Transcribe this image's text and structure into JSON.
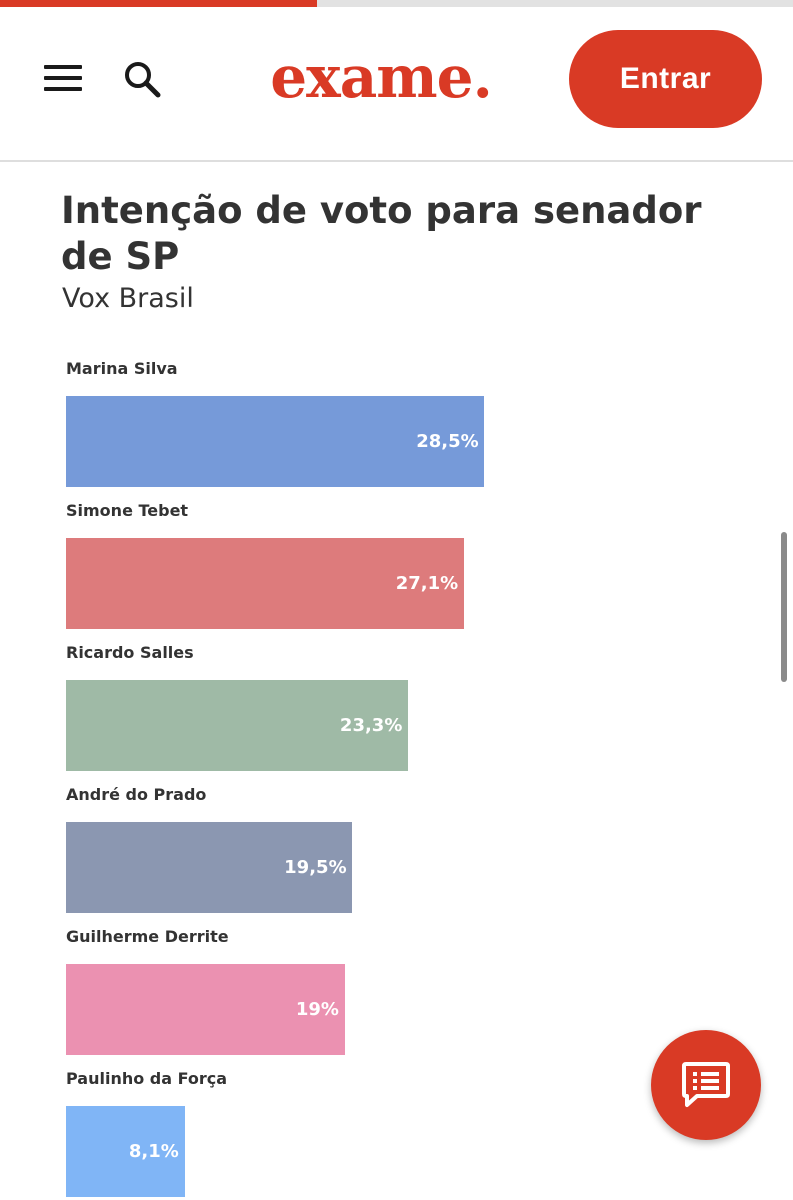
{
  "header": {
    "logo_text": "exame.",
    "login_label": "Entrar",
    "menu_icon": "hamburger-menu-icon",
    "search_icon": "search-icon",
    "accent_color": "#d93a25"
  },
  "reading_progress": 0.4,
  "fab": {
    "icon": "comments-icon"
  },
  "chart_data": {
    "type": "bar",
    "orientation": "horizontal",
    "title": "Intenção de voto para senador de SP",
    "subtitle": "Vox Brasil",
    "xlim": [
      0,
      40
    ],
    "grid": false,
    "categories": [
      "Marina Silva",
      "Simone Tebet",
      "Ricardo Salles",
      "André do Prado",
      "Guilherme Derrite",
      "Paulinho da Força"
    ],
    "values": [
      28.5,
      27.1,
      23.3,
      19.5,
      19,
      8.1
    ],
    "value_labels": [
      "28,5%",
      "27,1%",
      "23,3%",
      "19,5%",
      "19%",
      "8,1%"
    ],
    "colors": [
      "#769ad9",
      "#dd7b7c",
      "#9fbaa6",
      "#8b97b1",
      "#eb91b1",
      "#80b5f6"
    ]
  }
}
